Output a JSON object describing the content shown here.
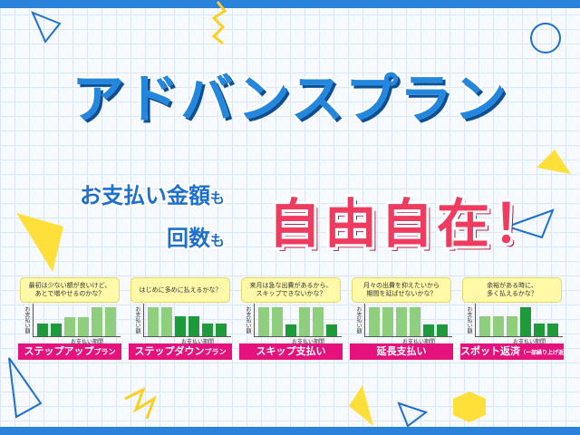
{
  "title": "アドバンスプラン",
  "subtitle_line1": "お支払い金額",
  "subtitle_line2": "回数",
  "subtitle_particle": "も",
  "headline": "自由自在！",
  "colors": {
    "blue": "#2487de",
    "pink": "#e5127d",
    "red": "#ef3b5f",
    "dark_green": "#1e9a3a",
    "light_green": "#8fce7c",
    "yellow": "#fff9a8"
  },
  "plans": [
    {
      "bubble": "最初は少ない額が良いけど、\nあとで増やせるのかな？",
      "ylabel": "お支払い額",
      "xlabel": "お支払い期間",
      "label_main": "ステップアップ",
      "label_small": "プラン",
      "bars": [
        0.45,
        0.45,
        0.65,
        0.65,
        1,
        1
      ],
      "shades": [
        "d",
        "d",
        "l",
        "l",
        "l",
        "l"
      ]
    },
    {
      "bubble": "はじめに多めに払えるかな？",
      "ylabel": "お支払い額",
      "xlabel": "お支払い期間",
      "label_main": "ステップダウン",
      "label_small": "プラン",
      "bars": [
        1,
        1,
        0.7,
        0.7,
        0.45,
        0.45
      ],
      "shades": [
        "l",
        "l",
        "d",
        "d",
        "d",
        "d"
      ]
    },
    {
      "bubble": "来月は急な出費があるから、\nスキップできないかな？",
      "ylabel": "お支払い額",
      "xlabel": "お支払い期間",
      "label_main": "スキップ支払い",
      "label_small": "",
      "bars": [
        1,
        1,
        0.4,
        1,
        1,
        0.4
      ],
      "shades": [
        "l",
        "l",
        "d",
        "l",
        "l",
        "d"
      ]
    },
    {
      "bubble": "月々の出費を抑えたいから\n期間を延ばせないかな？",
      "ylabel": "お支払い額",
      "xlabel": "お支払い期間",
      "label_main": "延長支払い",
      "label_small": "",
      "bars": [
        1,
        1,
        1,
        1,
        0.4,
        0.4
      ],
      "shades": [
        "l",
        "l",
        "l",
        "l",
        "d",
        "d"
      ]
    },
    {
      "bubble": "余裕がある時に、\n多く払えるかな？",
      "ylabel": "お支払い額",
      "xlabel": "お支払い期間",
      "label_main": "スポット返済",
      "label_small": "（一部繰り上げ返済）",
      "bars": [
        0.7,
        0.7,
        0.7,
        1,
        0.45,
        0.45
      ],
      "shades": [
        "l",
        "l",
        "l",
        "d",
        "d",
        "d"
      ]
    }
  ]
}
